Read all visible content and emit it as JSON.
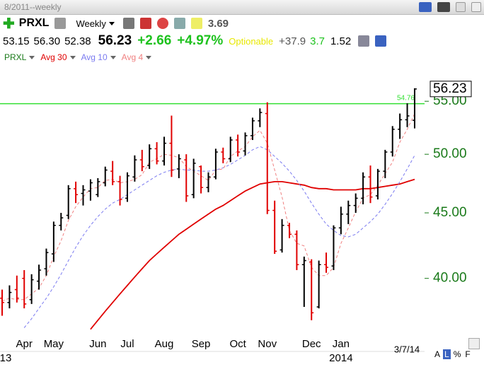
{
  "toolbar": {
    "window_title": "8/2011--weekly",
    "symbol": "PRXL",
    "period": "Weekly",
    "number": "3.69"
  },
  "quote": {
    "open": "53.15",
    "high": "56.30",
    "low": "52.38",
    "last": "56.23",
    "change": "+2.66",
    "change_pct": "+4.97%",
    "optionable": "Optionable",
    "stat1": "+37.9",
    "stat2": "3.7",
    "stat3": "1.52"
  },
  "footer": {
    "date": "3/7/14",
    "buttons": [
      "A",
      "L",
      "%",
      "F"
    ]
  },
  "chart_data": {
    "type": "ohlc",
    "symbol": "PRXL",
    "symbol_color": "#1a7a1a",
    "log_scale": true,
    "up_color": "#000000",
    "down_color": "#e00000",
    "ylim": [
      36.3,
      58.7
    ],
    "yticks": [
      {
        "value": 40,
        "label": "40.00"
      },
      {
        "value": 45,
        "label": "45.00"
      },
      {
        "value": 50,
        "label": "50.00"
      },
      {
        "value": 55,
        "label": "55.00"
      }
    ],
    "categories": [
      null,
      null,
      null,
      "Apr",
      null,
      null,
      null,
      "May",
      null,
      null,
      null,
      null,
      null,
      "Jun",
      null,
      null,
      null,
      "Jul",
      null,
      null,
      null,
      null,
      "Aug",
      null,
      null,
      null,
      null,
      "Sep",
      null,
      null,
      null,
      null,
      "Oct",
      null,
      null,
      null,
      "Nov",
      null,
      null,
      null,
      null,
      null,
      "Dec",
      null,
      null,
      null,
      "Jan",
      null,
      null,
      null,
      null,
      null,
      null,
      null,
      null,
      null,
      null
    ],
    "year_labels": [
      "13",
      null,
      null,
      null,
      null,
      null,
      null,
      null,
      null,
      null,
      null,
      null,
      null,
      null,
      null,
      null,
      null,
      null,
      null,
      null,
      null,
      null,
      null,
      null,
      null,
      null,
      null,
      null,
      null,
      null,
      null,
      null,
      null,
      null,
      null,
      null,
      null,
      null,
      null,
      null,
      null,
      null,
      null,
      null,
      null,
      null,
      "2014",
      null,
      null,
      null,
      null,
      null,
      null,
      null,
      null,
      null,
      null
    ],
    "open": [
      38.6,
      38.3,
      39.2,
      40.0,
      38.5,
      39.8,
      40.7,
      41.8,
      44.0,
      44.8,
      47.0,
      46.6,
      46.8,
      46.5,
      47.5,
      48.5,
      47.6,
      46.2,
      48.0,
      49.5,
      49.0,
      50.5,
      49.4,
      51.0,
      48.7,
      49.5,
      46.5,
      48.9,
      47.1,
      48.0,
      50.2,
      49.6,
      51.3,
      50.3,
      51.7,
      53.1,
      53.8,
      45.2,
      42.1,
      44.0,
      43.3,
      41.0,
      41.2,
      38.0,
      41.0,
      40.9,
      43.8,
      44.9,
      45.6,
      46.2,
      48.0,
      46.4,
      48.5,
      50.2,
      52.3,
      53.2,
      53.15
    ],
    "high": [
      39.2,
      39.5,
      40.2,
      40.6,
      40.3,
      41.0,
      42.2,
      44.3,
      45.0,
      47.3,
      47.6,
      47.3,
      47.8,
      47.9,
      48.9,
      49.4,
      48.1,
      48.4,
      49.9,
      50.4,
      50.9,
      51.1,
      51.6,
      53.6,
      50.0,
      50.0,
      49.6,
      49.0,
      48.4,
      50.5,
      50.6,
      51.6,
      51.8,
      52.0,
      53.4,
      54.3,
      54.9,
      46.0,
      44.5,
      44.2,
      43.6,
      41.6,
      41.4,
      41.3,
      41.9,
      44.0,
      45.5,
      46.0,
      46.6,
      48.4,
      49.0,
      48.7,
      50.4,
      52.6,
      53.8,
      54.8,
      56.3
    ],
    "low": [
      37.4,
      37.9,
      38.3,
      37.9,
      38.2,
      39.2,
      40.2,
      41.2,
      43.6,
      44.5,
      45.8,
      45.6,
      46.0,
      46.3,
      47.2,
      47.3,
      45.6,
      45.9,
      47.6,
      48.5,
      48.7,
      49.1,
      49.0,
      48.0,
      47.9,
      45.9,
      46.2,
      46.6,
      46.7,
      47.8,
      49.2,
      49.3,
      49.8,
      49.9,
      51.3,
      52.5,
      44.9,
      41.8,
      41.9,
      43.0,
      40.6,
      38.0,
      37.1,
      37.9,
      40.4,
      40.6,
      43.3,
      44.1,
      45.0,
      45.7,
      45.8,
      46.1,
      47.9,
      49.8,
      51.4,
      52.5,
      52.38
    ],
    "close": [
      38.3,
      39.0,
      38.6,
      38.2,
      39.9,
      40.6,
      41.9,
      44.0,
      44.6,
      47.0,
      46.5,
      46.9,
      47.5,
      47.6,
      48.6,
      47.6,
      46.1,
      48.1,
      49.5,
      48.9,
      50.5,
      49.4,
      51.0,
      48.6,
      49.6,
      46.4,
      49.2,
      47.1,
      48.0,
      50.2,
      49.6,
      51.3,
      50.2,
      51.7,
      53.1,
      53.9,
      45.2,
      42.0,
      44.0,
      43.3,
      41.0,
      41.3,
      37.6,
      41.0,
      40.8,
      43.8,
      44.9,
      45.6,
      46.2,
      48.0,
      46.3,
      48.5,
      50.2,
      52.3,
      53.2,
      53.57,
      56.23
    ],
    "series": [
      {
        "name": "Avg 30",
        "color": "#e00000",
        "dash": false,
        "values": [
          null,
          null,
          null,
          null,
          null,
          null,
          null,
          null,
          null,
          null,
          null,
          null,
          36.5,
          37.1,
          37.7,
          38.3,
          38.9,
          39.5,
          40.1,
          40.7,
          41.3,
          41.8,
          42.3,
          42.8,
          43.3,
          43.7,
          44.1,
          44.5,
          44.9,
          45.3,
          45.6,
          46.0,
          46.4,
          46.8,
          47.1,
          47.4,
          47.5,
          47.6,
          47.6,
          47.5,
          47.4,
          47.3,
          47.1,
          47.0,
          47.0,
          46.9,
          46.9,
          46.9,
          46.9,
          47.0,
          47.0,
          47.1,
          47.2,
          47.3,
          47.4,
          47.6,
          47.8
        ]
      },
      {
        "name": "Avg 10",
        "color": "#7a7af0",
        "dash": true,
        "values": [
          null,
          null,
          null,
          36.6,
          37.2,
          37.9,
          38.6,
          39.4,
          40.3,
          41.3,
          42.3,
          43.2,
          44.0,
          44.7,
          45.3,
          45.8,
          46.1,
          46.5,
          46.9,
          47.3,
          47.7,
          48.1,
          48.4,
          48.6,
          48.7,
          48.6,
          48.6,
          48.5,
          48.5,
          48.6,
          48.8,
          49.1,
          49.5,
          49.9,
          50.4,
          50.7,
          50.4,
          49.8,
          49.2,
          48.5,
          47.7,
          46.8,
          45.8,
          44.9,
          44.1,
          43.6,
          43.2,
          43.1,
          43.3,
          43.8,
          44.3,
          44.9,
          45.7,
          46.6,
          47.6,
          48.7,
          49.9
        ]
      },
      {
        "name": "Avg 4",
        "color": "#f08080",
        "dash": true,
        "values": [
          38.4,
          38.6,
          38.5,
          38.5,
          38.9,
          39.3,
          40.2,
          41.6,
          42.8,
          44.4,
          45.5,
          46.3,
          47.0,
          47.1,
          47.7,
          47.8,
          47.5,
          47.6,
          47.8,
          48.2,
          49.3,
          49.6,
          50.0,
          49.9,
          49.7,
          48.9,
          48.5,
          48.1,
          47.7,
          48.6,
          48.7,
          49.8,
          50.3,
          50.7,
          51.6,
          52.2,
          51.0,
          48.6,
          46.3,
          43.6,
          42.6,
          42.4,
          40.8,
          40.2,
          40.2,
          40.8,
          42.6,
          43.8,
          45.1,
          46.2,
          46.5,
          47.3,
          48.3,
          49.3,
          51.1,
          52.3,
          53.8
        ]
      }
    ],
    "hlines": [
      {
        "value": 54.76,
        "label": "54.76",
        "color": "#33e033"
      }
    ],
    "last_label": {
      "value": 56.23,
      "label": "56.23"
    }
  }
}
